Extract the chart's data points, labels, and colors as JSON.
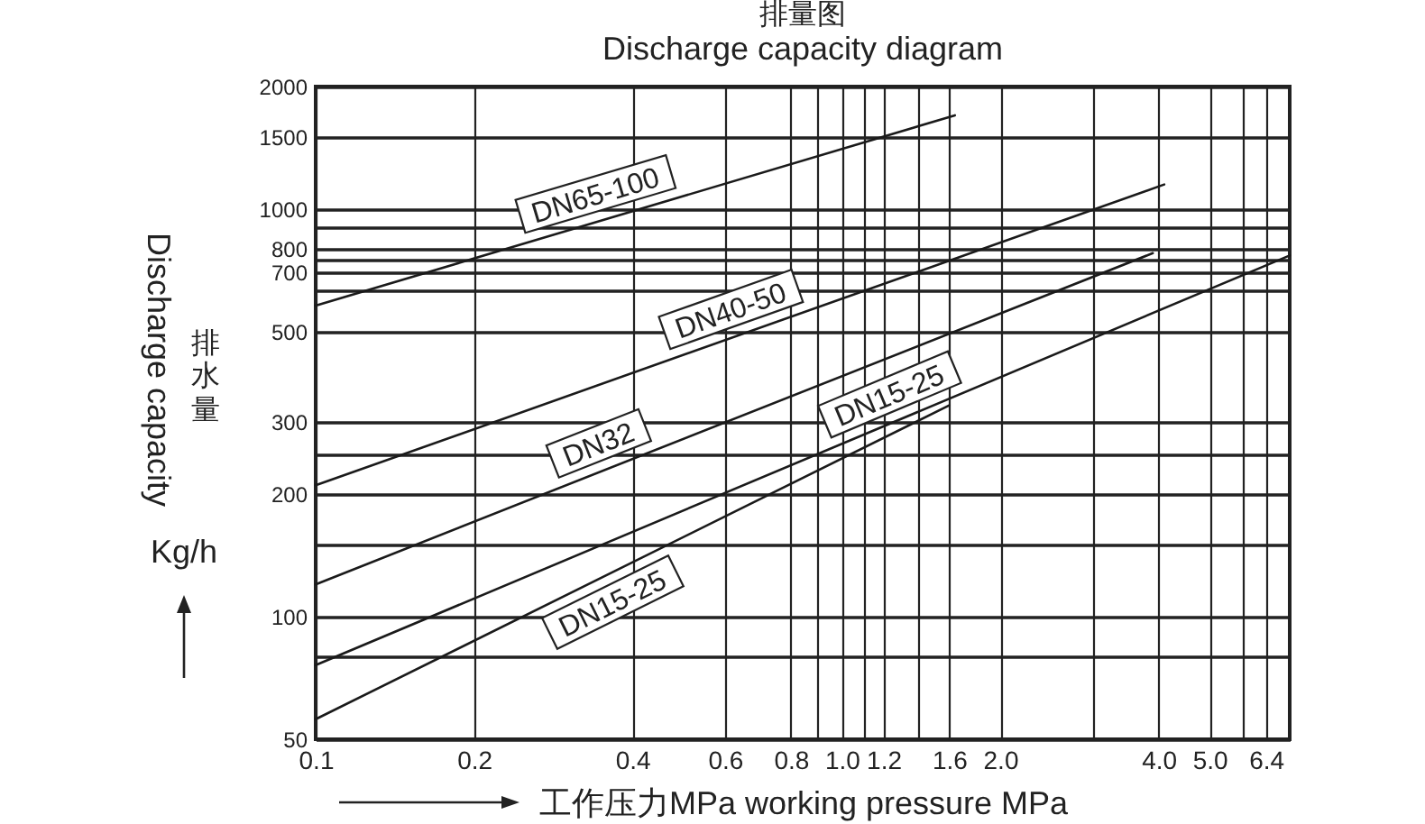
{
  "chart_data": {
    "type": "line",
    "title": "排量图",
    "subtitle": "Discharge capacity diagram",
    "xlabel": "工作压力MPa working pressure MPa",
    "ylabel": "Discharge capacity\n排水量\nKg/h",
    "series": [
      {
        "name": "DN65-100",
        "color": "#1a1a1a",
        "x": [
          0.1,
          1.64
        ],
        "values": [
          580,
          1700
        ]
      },
      {
        "name": "DN40-50",
        "color": "#1a1a1a",
        "x": [
          0.1,
          4.1
        ],
        "values": [
          210,
          1150
        ]
      },
      {
        "name": "DN32",
        "color": "#1a1a1a",
        "x": [
          0.1,
          3.9
        ],
        "values": [
          120,
          780
        ]
      },
      {
        "name": "DN15-25",
        "color": "#1a1a1a",
        "x": [
          0.1,
          7.1
        ],
        "values": [
          76,
          770
        ]
      },
      {
        "name": "DN15-25",
        "color": "#1a1a1a",
        "x": [
          0.1,
          1.6
        ],
        "values": [
          56,
          330
        ]
      }
    ],
    "xlim": [
      0.1,
      7.1
    ],
    "xticks": [
      0.1,
      0.2,
      0.4,
      0.6,
      0.8,
      {
        "value": 0.9,
        "label": null
      },
      {
        "value": 1,
        "label": "1.0"
      },
      {
        "value": 1.1,
        "label": null
      },
      1.2,
      {
        "value": 1.4,
        "label": null
      },
      1.6,
      {
        "value": 2,
        "label": "2.0"
      },
      {
        "value": 3,
        "label": null
      },
      {
        "value": 4,
        "label": "4.0"
      },
      {
        "value": 5,
        "label": "5.0"
      },
      {
        "value": 5.8,
        "label": null
      },
      6.4
    ],
    "ylim": [
      50,
      2000
    ],
    "yticks": [
      50,
      {
        "value": 80,
        "label": null
      },
      100,
      {
        "value": 150,
        "label": null
      },
      200,
      {
        "value": 250,
        "label": null
      },
      300,
      500,
      {
        "value": 630,
        "label": null
      },
      700,
      {
        "value": 750,
        "label": null
      },
      800,
      {
        "value": 900,
        "label": null
      },
      1000,
      1500,
      2000
    ],
    "log": "xy",
    "grid": true,
    "line_style": "solid"
  }
}
